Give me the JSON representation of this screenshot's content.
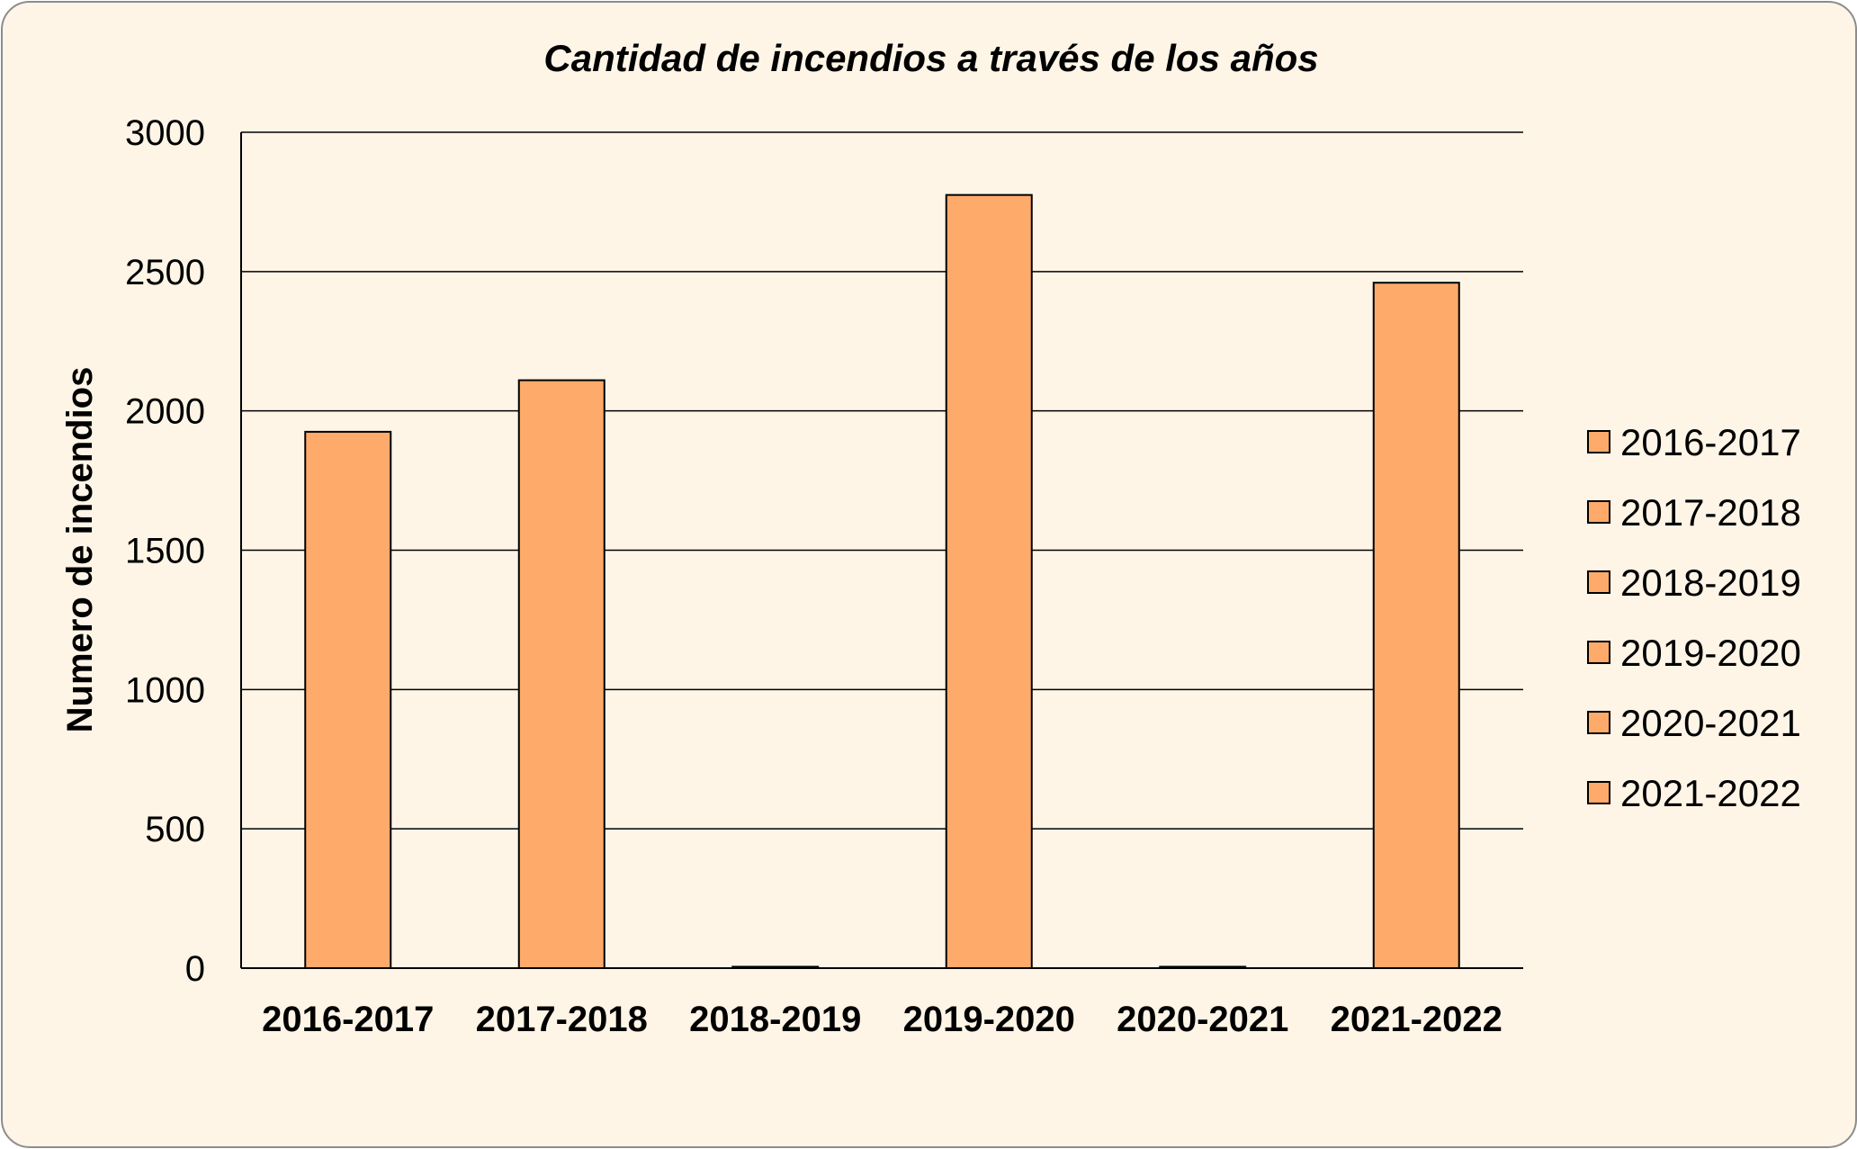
{
  "colors": {
    "background": "#fef5e7",
    "bar_fill": "#fdaa6b",
    "bar_stroke": "#000000",
    "grid": "#000000",
    "frame_border": "#8c8c8c"
  },
  "chart_data": {
    "type": "bar",
    "title": "Cantidad de incendios a través de los años",
    "xlabel": "",
    "ylabel": "Numero de incendios",
    "categories": [
      "2016-2017",
      "2017-2018",
      "2018-2019",
      "2019-2020",
      "2020-2021",
      "2021-2022"
    ],
    "series": [
      {
        "values": [
          1925,
          2110,
          5,
          2775,
          5,
          2460
        ]
      }
    ],
    "ylim": [
      0,
      3000
    ],
    "yticks": [
      "0",
      "500",
      "1000",
      "1500",
      "2000",
      "2500",
      "3000"
    ],
    "grid": true,
    "legend": {
      "placement": "right",
      "entries": [
        "2016-2017",
        "2017-2018",
        "2018-2019",
        "2019-2020",
        "2020-2021",
        "2021-2022"
      ]
    }
  }
}
